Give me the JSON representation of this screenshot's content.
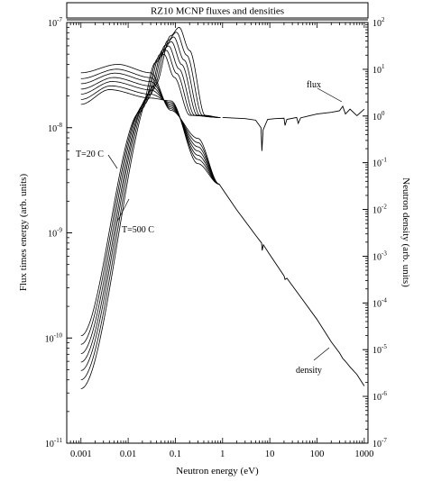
{
  "chart_data": {
    "type": "line",
    "title": "RZ10 MCNP fluxes and densities",
    "xlabel": "Neutron energy (eV)",
    "ylabel_left": "Flux times energy (arb. units)",
    "ylabel_right": "Neutron density (arb. units)",
    "x_scale": "log",
    "y_scale": "log",
    "xlim": [
      0.0005,
      1200
    ],
    "ylim_left": [
      1e-11,
      1e-07
    ],
    "ylim_right": [
      1e-07,
      100
    ],
    "x_ticks": [
      {
        "v": 0.001,
        "label": "0.001"
      },
      {
        "v": 0.01,
        "label": "0.01"
      },
      {
        "v": 0.1,
        "label": "0.1"
      },
      {
        "v": 1,
        "label": "1"
      },
      {
        "v": 10,
        "label": "10"
      },
      {
        "v": 100,
        "label": "100"
      },
      {
        "v": 1000,
        "label": "1000"
      }
    ],
    "y_left_ticks": [
      {
        "exp": -7,
        "base": "10",
        "sup": "-7"
      },
      {
        "exp": -8,
        "base": "10",
        "sup": "-8"
      },
      {
        "exp": -9,
        "base": "10",
        "sup": "-9"
      },
      {
        "exp": -10,
        "base": "10",
        "sup": "-10"
      },
      {
        "exp": -11,
        "base": "10",
        "sup": "-11"
      }
    ],
    "y_right_ticks": [
      {
        "exp": 2,
        "base": "10",
        "sup": "2"
      },
      {
        "exp": 1,
        "base": "10",
        "sup": "1"
      },
      {
        "exp": 0,
        "base": "10",
        "sup": "0"
      },
      {
        "exp": -1,
        "base": "10",
        "sup": "-1"
      },
      {
        "exp": -2,
        "base": "10",
        "sup": "-2"
      },
      {
        "exp": -3,
        "base": "10",
        "sup": "-3"
      },
      {
        "exp": -4,
        "base": "10",
        "sup": "-4"
      },
      {
        "exp": -5,
        "base": "10",
        "sup": "-5"
      },
      {
        "exp": -6,
        "base": "10",
        "sup": "-6"
      },
      {
        "exp": -7,
        "base": "10",
        "sup": "-7"
      }
    ],
    "annotations": {
      "flux": "flux",
      "density": "density",
      "t_low": "T=20 C",
      "t_high": "T=500 C"
    },
    "temperature_curves": 7,
    "flux_peaks": [
      {
        "x": 0.12,
        "y": 9e-08
      },
      {
        "x": 0.105,
        "y": 8.1e-08
      },
      {
        "x": 0.092,
        "y": 7.3e-08
      },
      {
        "x": 0.082,
        "y": 6.6e-08
      },
      {
        "x": 0.072,
        "y": 6e-08
      },
      {
        "x": 0.064,
        "y": 5.45e-08
      },
      {
        "x": 0.057,
        "y": 5e-08
      }
    ],
    "flux_at_0001": [
      3.3e-11,
      4e-11,
      4.9e-11,
      5.9e-11,
      7.1e-11,
      8.7e-11,
      1.05e-10
    ],
    "flux_plateau": 1.25e-08,
    "flux_epithermal": [
      [
        1,
        1.25e-08
      ],
      [
        3,
        1.22e-08
      ],
      [
        5,
        1.18e-08
      ],
      [
        6.5,
        1e-08
      ],
      [
        6.8,
        6e-09
      ],
      [
        7.2,
        9.5e-09
      ],
      [
        9,
        1.2e-08
      ],
      [
        13,
        1.22e-08
      ],
      [
        20,
        1.23e-08
      ],
      [
        21,
        1.05e-08
      ],
      [
        23,
        1.2e-08
      ],
      [
        37,
        1.25e-08
      ],
      [
        40,
        1.1e-08
      ],
      [
        45,
        1.24e-08
      ],
      [
        70,
        1.3e-08
      ],
      [
        100,
        1.35e-08
      ],
      [
        200,
        1.4e-08
      ],
      [
        300,
        1.45e-08
      ],
      [
        350,
        1.6e-08
      ],
      [
        400,
        1.35e-08
      ],
      [
        500,
        1.5e-08
      ],
      [
        700,
        1.3e-08
      ],
      [
        1000,
        1.5e-08
      ]
    ],
    "density_peak_y": [
      2.3e-08,
      2.5e-08,
      2.75e-08,
      3e-08,
      3.3e-08,
      3.6e-08,
      4e-08
    ],
    "density_converge": {
      "x": 0.85,
      "y": 2.9e-09
    },
    "density_tail": [
      [
        0.85,
        2.9e-09
      ],
      [
        1,
        2.6e-09
      ],
      [
        2,
        1.65e-09
      ],
      [
        5,
        9.5e-10
      ],
      [
        6.7,
        8e-10
      ],
      [
        6.9,
        6.8e-10
      ],
      [
        7.3,
        7.7e-10
      ],
      [
        10,
        6.2e-10
      ],
      [
        20,
        3.9e-10
      ],
      [
        21,
        3.6e-10
      ],
      [
        23,
        3.7e-10
      ],
      [
        50,
        2.3e-10
      ],
      [
        100,
        1.5e-10
      ],
      [
        200,
        9.2e-11
      ],
      [
        300,
        7.2e-11
      ],
      [
        350,
        6.4e-11
      ],
      [
        400,
        6e-11
      ],
      [
        500,
        5.3e-11
      ],
      [
        700,
        4.5e-11
      ],
      [
        1000,
        3.5e-11
      ]
    ]
  }
}
